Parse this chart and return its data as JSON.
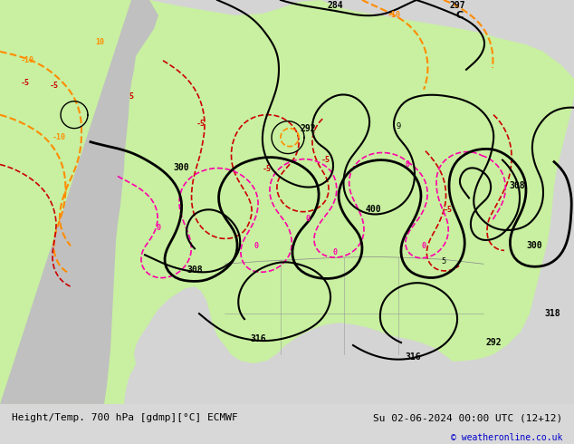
{
  "title_left": "Height/Temp. 700 hPa [gdmp][°C] ECMWF",
  "title_right": "Su 02-06-2024 00:00 UTC (12+12)",
  "copyright": "© weatheronline.co.uk",
  "bg_color": "#d8d8d8",
  "map_bg": "#d8d8d8",
  "land_color": "#c8c8c8",
  "green_color": "#c8f0a0",
  "fig_width": 6.34,
  "fig_height": 4.9,
  "dpi": 100,
  "bottom_bar_color": "#f0f0f0",
  "title_color": "#000080",
  "copyright_color": "#0000cc"
}
